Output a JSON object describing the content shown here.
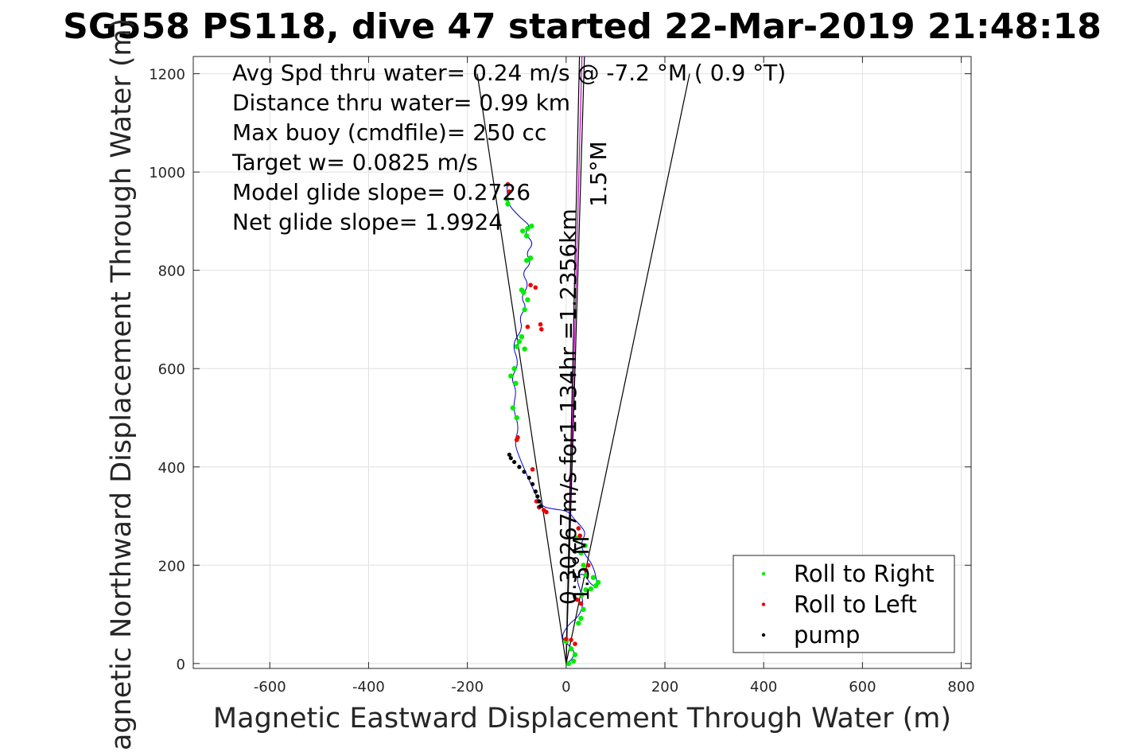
{
  "chart_data": {
    "type": "scatter",
    "title": "SG558 PS118, dive 47 started 22-Mar-2019 21:48:18",
    "xlabel": "Magnetic Eastward Displacement Through Water (m)",
    "ylabel": "Magnetic Northward Displacement Through Water (m)",
    "xlim": [
      -755,
      820
    ],
    "ylim": [
      -10,
      1235
    ],
    "x_ticks": [
      -600,
      -400,
      -200,
      0,
      200,
      400,
      600,
      800
    ],
    "y_ticks": [
      0,
      200,
      400,
      600,
      800,
      1000,
      1200
    ],
    "x_tick_labels": [
      "-600",
      "-400",
      "-200",
      "0",
      "200",
      "400",
      "600",
      "800"
    ],
    "y_tick_labels": [
      "0",
      "200",
      "400",
      "600",
      "800",
      "1000",
      "1200"
    ],
    "grid": true,
    "legend_position": "bottom-right",
    "annotations": [
      "Avg Spd thru water=  0.24 m/s @  -7.2 °M (  0.9 °T)",
      "Distance thru water=  0.99 km",
      "Max buoy (cmdfile)= 250 cc",
      "Target w= 0.0825 m/s",
      "Model glide slope= 0.2726",
      "Net glide slope= 1.9924"
    ],
    "line_labels": {
      "current": "0.30267m/s for1.134hr =1.2356km",
      "cone_upper": "1.5°M",
      "cone_lower": "1.5°M"
    },
    "series": [
      {
        "name": "Roll to Right",
        "color": "#00ee00",
        "marker": "dot"
      },
      {
        "name": "Roll to Left",
        "color": "#ee0000",
        "marker": "dot"
      },
      {
        "name": "pump",
        "color": "#000000",
        "marker": "dot"
      }
    ],
    "track": {
      "color": "#0000cc",
      "x": [
        0,
        12,
        18,
        0,
        -10,
        5,
        25,
        35,
        30,
        20,
        35,
        50,
        65,
        55,
        35,
        30,
        40,
        30,
        15,
        5,
        -30,
        -50,
        -65,
        -80,
        -95,
        -105,
        -95,
        -108,
        -100,
        -112,
        -95,
        -110,
        -88,
        -95,
        -80,
        -92,
        -75,
        -90,
        -70,
        -82,
        -65,
        -85,
        -72,
        -90,
        -100,
        -118,
        -120
      ],
      "y": [
        0,
        8,
        25,
        42,
        55,
        80,
        95,
        120,
        145,
        175,
        185,
        160,
        155,
        200,
        225,
        245,
        265,
        280,
        295,
        310,
        315,
        320,
        350,
        385,
        420,
        450,
        480,
        520,
        555,
        580,
        610,
        650,
        680,
        705,
        725,
        745,
        770,
        795,
        815,
        835,
        855,
        875,
        890,
        905,
        915,
        935,
        975
      ]
    },
    "roll_right": {
      "x": [
        5,
        15,
        18,
        10,
        0,
        25,
        30,
        35,
        32,
        40,
        50,
        60,
        65,
        55,
        40,
        35,
        30,
        38,
        20,
        -100,
        -108,
        -102,
        -112,
        -105,
        -100,
        -95,
        -90,
        -84,
        -78,
        -86,
        -90,
        -80,
        -72,
        -80,
        -88,
        -78,
        -70,
        -84,
        -118,
        -120
      ],
      "y": [
        0,
        5,
        18,
        30,
        45,
        82,
        92,
        110,
        140,
        150,
        152,
        158,
        165,
        175,
        180,
        200,
        225,
        240,
        255,
        500,
        520,
        570,
        585,
        600,
        645,
        655,
        665,
        720,
        740,
        755,
        760,
        820,
        825,
        870,
        880,
        885,
        890,
        640,
        935,
        945
      ],
      "note": "positions along the track where the glider rolled right"
    },
    "roll_left": {
      "x": [
        0,
        10,
        18,
        22,
        28,
        40,
        45,
        30,
        25,
        -100,
        -98,
        -60,
        -55,
        -45,
        -40,
        -50,
        -52,
        -78,
        -72,
        -62,
        -115,
        -118,
        -68
      ],
      "y": [
        50,
        48,
        40,
        130,
        260,
        190,
        200,
        122,
        275,
        455,
        460,
        330,
        318,
        312,
        308,
        680,
        690,
        685,
        770,
        765,
        960,
        975,
        395
      ],
      "note": "positions along the track where the glider rolled left"
    },
    "pump": {
      "x": [
        -115,
        -112,
        -105,
        -95,
        -85,
        -75,
        -68,
        -62,
        -58,
        -55,
        -52
      ],
      "y": [
        425,
        418,
        410,
        400,
        390,
        378,
        365,
        350,
        340,
        330,
        320
      ]
    },
    "reference_lines": [
      {
        "name": "heading",
        "color": "#000000",
        "x": [
          0,
          250
        ],
        "y": [
          0,
          1200
        ]
      },
      {
        "name": "heading",
        "color": "#000000",
        "x": [
          0,
          -180
        ],
        "y": [
          0,
          1200
        ]
      },
      {
        "name": "current",
        "color": "#cc00cc",
        "x": [
          0,
          32
        ],
        "y": [
          0,
          1235
        ]
      },
      {
        "name": "cone",
        "color": "#000000",
        "x": [
          0,
          37
        ],
        "y": [
          0,
          1235
        ]
      },
      {
        "name": "cone",
        "color": "#000000",
        "x": [
          0,
          27
        ],
        "y": [
          0,
          1235
        ]
      }
    ]
  }
}
